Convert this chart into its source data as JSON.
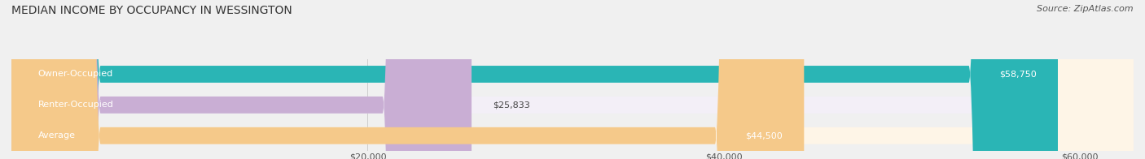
{
  "title": "MEDIAN INCOME BY OCCUPANCY IN WESSINGTON",
  "source": "Source: ZipAtlas.com",
  "categories": [
    "Owner-Occupied",
    "Renter-Occupied",
    "Average"
  ],
  "values": [
    58750,
    25833,
    44500
  ],
  "labels": [
    "$58,750",
    "$25,833",
    "$44,500"
  ],
  "bar_colors": [
    "#2ab5b5",
    "#c9aed4",
    "#f5c98a"
  ],
  "bar_bg_colors": [
    "#e8f7f7",
    "#f3eff7",
    "#fef5e7"
  ],
  "xlim": [
    0,
    63000
  ],
  "xticks": [
    20000,
    40000,
    60000
  ],
  "xticklabels": [
    "$20,000",
    "$40,000",
    "$60,000"
  ],
  "title_fontsize": 10,
  "source_fontsize": 8,
  "label_fontsize": 8,
  "bar_label_fontsize": 8,
  "bar_height": 0.55,
  "figsize": [
    14.06,
    1.96
  ],
  "dpi": 100,
  "bg_color": "#f0f0f0"
}
